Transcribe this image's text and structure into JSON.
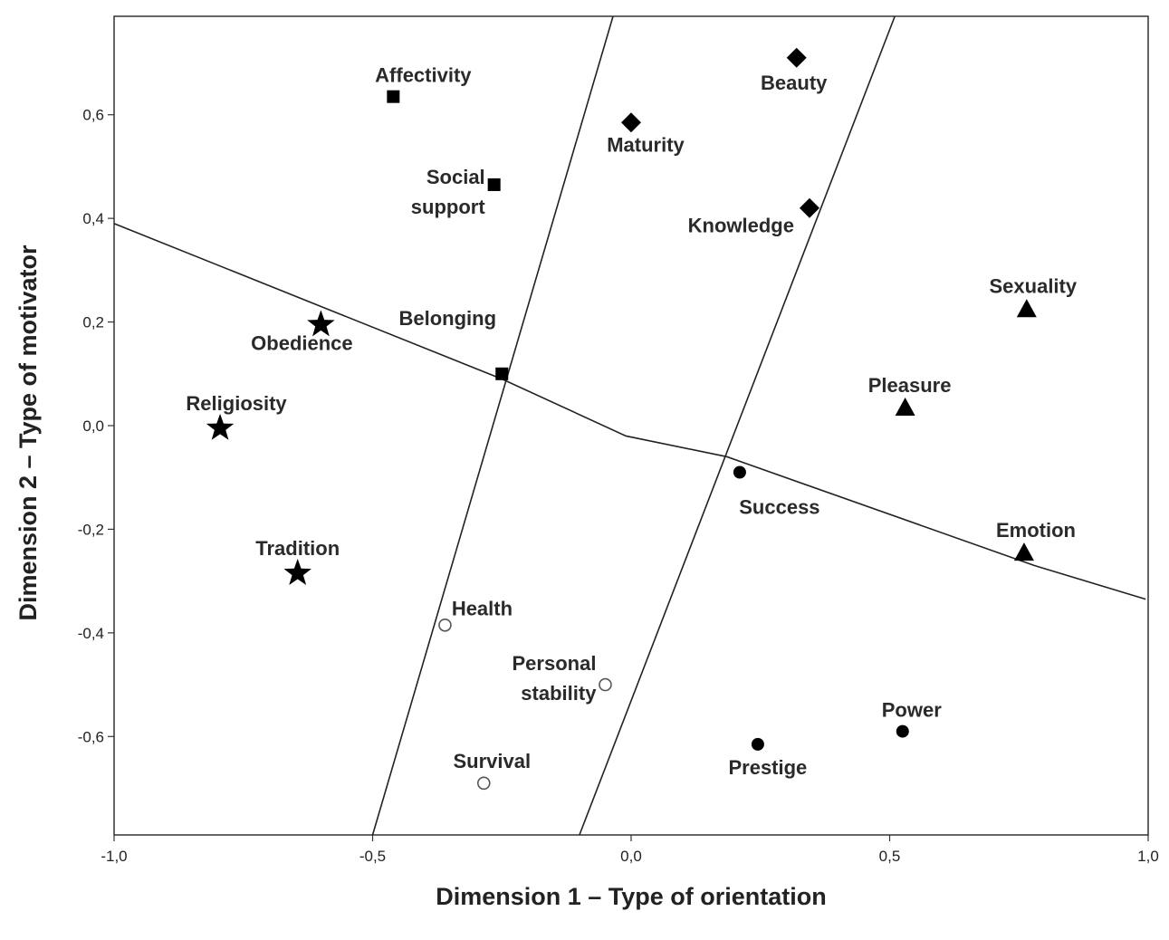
{
  "chart_data": {
    "type": "scatter",
    "xlabel": "Dimension 1 – Type of orientation",
    "ylabel": "Dimension 2 – Type of motivator",
    "xlim": [
      -1.0,
      1.0
    ],
    "ylim": [
      -0.79,
      0.79
    ],
    "x_ticks": [
      -1.0,
      -0.5,
      0.0,
      0.5,
      1.0
    ],
    "x_tick_labels": [
      "-1,0",
      "-0,5",
      "0,0",
      "0,5",
      "1,0"
    ],
    "y_ticks": [
      -0.6,
      -0.4,
      -0.2,
      0.0,
      0.2,
      0.4,
      0.6
    ],
    "y_tick_labels": [
      "-0,6",
      "-0,4",
      "-0,2",
      "0,0",
      "0,2",
      "0,4",
      "0,6"
    ],
    "grid": false,
    "points": [
      {
        "label": "Affectivity",
        "x": -0.46,
        "y": 0.635,
        "marker": "square"
      },
      {
        "label": "Social\nsupport",
        "x": -0.265,
        "y": 0.465,
        "marker": "square"
      },
      {
        "label": "Belonging",
        "x": -0.25,
        "y": 0.1,
        "marker": "square"
      },
      {
        "label": "Beauty",
        "x": 0.32,
        "y": 0.71,
        "marker": "diamond"
      },
      {
        "label": "Maturity",
        "x": 0.0,
        "y": 0.585,
        "marker": "diamond"
      },
      {
        "label": "Knowledge",
        "x": 0.345,
        "y": 0.42,
        "marker": "diamond"
      },
      {
        "label": "Sexuality",
        "x": 0.765,
        "y": 0.225,
        "marker": "triangle"
      },
      {
        "label": "Pleasure",
        "x": 0.53,
        "y": 0.035,
        "marker": "triangle"
      },
      {
        "label": "Emotion",
        "x": 0.76,
        "y": -0.245,
        "marker": "triangle"
      },
      {
        "label": "Obedience",
        "x": -0.6,
        "y": 0.195,
        "marker": "star"
      },
      {
        "label": "Religiosity",
        "x": -0.795,
        "y": -0.005,
        "marker": "star"
      },
      {
        "label": "Tradition",
        "x": -0.645,
        "y": -0.285,
        "marker": "star"
      },
      {
        "label": "Success",
        "x": 0.21,
        "y": -0.09,
        "marker": "circle"
      },
      {
        "label": "Power",
        "x": 0.525,
        "y": -0.59,
        "marker": "circle"
      },
      {
        "label": "Prestige",
        "x": 0.245,
        "y": -0.615,
        "marker": "circle"
      },
      {
        "label": "Health",
        "x": -0.36,
        "y": -0.385,
        "marker": "open-circle"
      },
      {
        "label": "Personal\nstability",
        "x": -0.05,
        "y": -0.5,
        "marker": "open-circle"
      },
      {
        "label": "Survival",
        "x": -0.285,
        "y": -0.69,
        "marker": "open-circle"
      }
    ],
    "boundary_lines": [
      {
        "points": [
          [
            -1.0,
            0.39
          ],
          [
            -0.25,
            0.09
          ],
          [
            -0.01,
            -0.02
          ],
          [
            0.185,
            -0.06
          ],
          [
            0.78,
            -0.27
          ],
          [
            0.995,
            -0.335
          ]
        ]
      },
      {
        "points": [
          [
            -0.5,
            -0.79
          ],
          [
            -0.035,
            0.79
          ]
        ]
      },
      {
        "points": [
          [
            -0.1,
            -0.79
          ],
          [
            0.51,
            0.79
          ]
        ]
      }
    ]
  }
}
